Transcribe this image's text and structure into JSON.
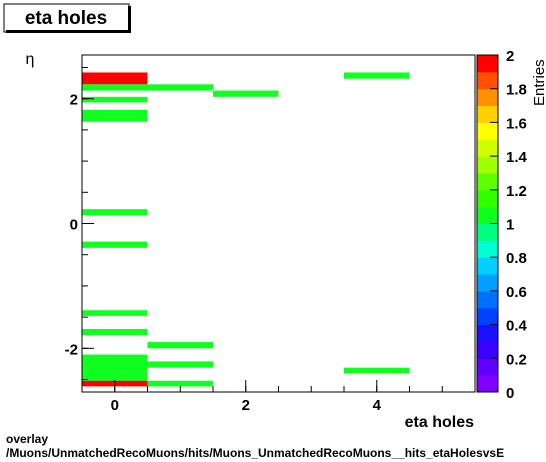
{
  "chart_data": {
    "type": "heatmap",
    "title": "eta holes",
    "x_label": "eta holes",
    "y_label": "η",
    "z_label": "Entries",
    "xlim": [
      -0.5,
      5.5
    ],
    "xticks": [
      0,
      2,
      4
    ],
    "ylim": [
      -2.7,
      2.7
    ],
    "yticks": [
      -2,
      0,
      2
    ],
    "zlim": [
      0,
      2
    ],
    "zticks": [
      0,
      0.2,
      0.4,
      0.6,
      0.8,
      1,
      1.2,
      1.4,
      1.6,
      1.8,
      2
    ],
    "x_bin_width": 1,
    "palette": [
      "#8000ff",
      "#6000ff",
      "#3c00ff",
      "#1810ff",
      "#0040ff",
      "#0070ff",
      "#00a0ff",
      "#00d0ff",
      "#00ffd0",
      "#00ff80",
      "#10ff20",
      "#30ff00",
      "#60ff00",
      "#a0ff00",
      "#d0ff00",
      "#ffff00",
      "#ffd000",
      "#ff9000",
      "#ff5000",
      "#ff0000"
    ],
    "cells": [
      {
        "x": 0,
        "ylo": 2.23,
        "yhi": 2.42,
        "value": 2
      },
      {
        "x": 0,
        "ylo": 2.13,
        "yhi": 2.23,
        "value": 1
      },
      {
        "x": 1,
        "ylo": 2.13,
        "yhi": 2.23,
        "value": 1
      },
      {
        "x": 2,
        "ylo": 2.03,
        "yhi": 2.13,
        "value": 1
      },
      {
        "x": 4,
        "ylo": 2.32,
        "yhi": 2.42,
        "value": 1
      },
      {
        "x": 0,
        "ylo": 1.94,
        "yhi": 2.03,
        "value": 1
      },
      {
        "x": 0,
        "ylo": 1.63,
        "yhi": 1.82,
        "value": 1
      },
      {
        "x": 0,
        "ylo": 0.13,
        "yhi": 0.23,
        "value": 1
      },
      {
        "x": 0,
        "ylo": -0.39,
        "yhi": -0.29,
        "value": 1
      },
      {
        "x": 0,
        "ylo": -1.48,
        "yhi": -1.39,
        "value": 1
      },
      {
        "x": 0,
        "ylo": -1.79,
        "yhi": -1.69,
        "value": 1
      },
      {
        "x": 1,
        "ylo": -2.0,
        "yhi": -1.9,
        "value": 1
      },
      {
        "x": 0,
        "ylo": -2.52,
        "yhi": -2.1,
        "value": 1
      },
      {
        "x": 1,
        "ylo": -2.31,
        "yhi": -2.21,
        "value": 1
      },
      {
        "x": 4,
        "ylo": -2.4,
        "yhi": -2.31,
        "value": 1
      },
      {
        "x": 0,
        "ylo": -2.61,
        "yhi": -2.52,
        "value": 2
      },
      {
        "x": 1,
        "ylo": -2.61,
        "yhi": -2.52,
        "value": 1
      }
    ],
    "footer": [
      "overlay",
      "/Muons/UnmatchedRecoMuons/hits/Muons_UnmatchedRecoMuons__hits_etaHolesvsE"
    ]
  }
}
